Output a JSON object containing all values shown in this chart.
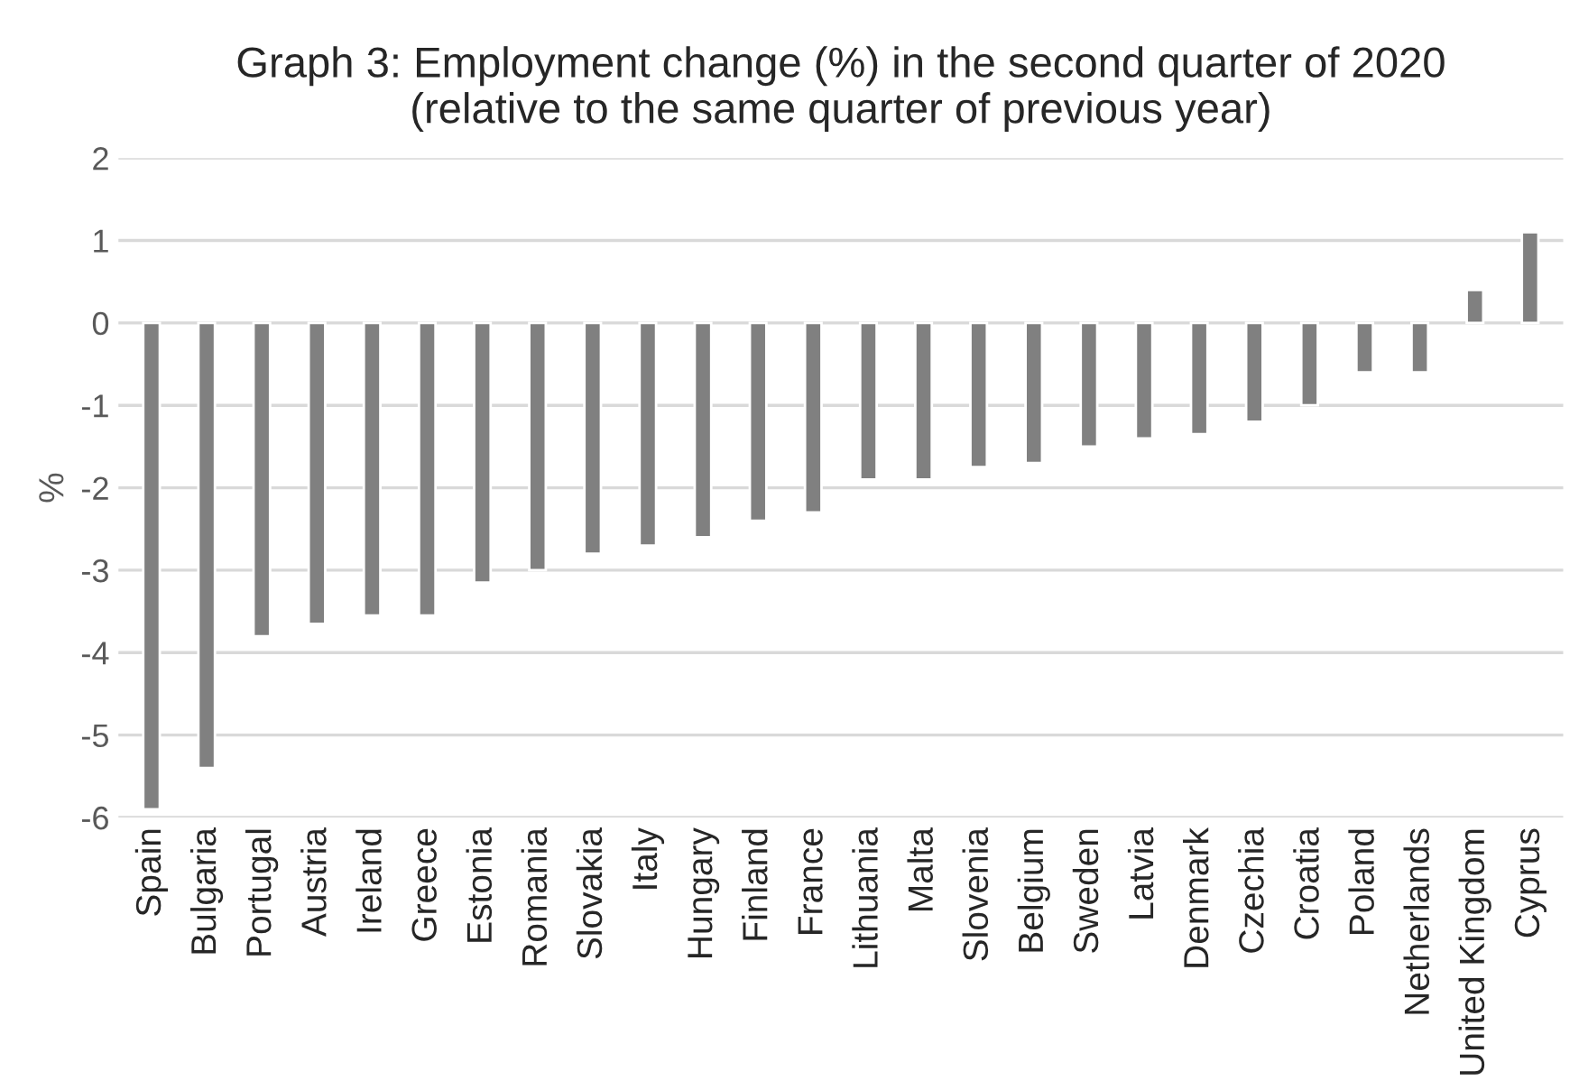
{
  "chart_data": {
    "type": "bar",
    "title": "Graph 3: Employment change (%) in the second quarter of 2020\n(relative to the same quarter of previous year)",
    "ylabel": "%",
    "categories": [
      "Spain",
      "Bulgaria",
      "Portugal",
      "Austria",
      "Ireland",
      "Greece",
      "Estonia",
      "Romania",
      "Slovakia",
      "Italy",
      "Hungary",
      "Finland",
      "France",
      "Lithuania",
      "Malta",
      "Slovenia",
      "Belgium",
      "Sweden",
      "Latvia",
      "Denmark",
      "Czechia",
      "Croatia",
      "Poland",
      "Netherlands",
      "United Kingdom",
      "Cyprus"
    ],
    "values": [
      -5.9,
      -5.4,
      -3.8,
      -3.65,
      -3.55,
      -3.55,
      -3.15,
      -3.0,
      -2.8,
      -2.7,
      -2.6,
      -2.4,
      -2.3,
      -1.9,
      -1.9,
      -1.75,
      -1.7,
      -1.5,
      -1.4,
      -1.35,
      -1.2,
      -1.0,
      -0.6,
      -0.6,
      0.4,
      1.1
    ],
    "color": "#808080",
    "ylim": [
      -6,
      2
    ],
    "yticks": [
      -6,
      -5,
      -4,
      -3,
      -2,
      -1,
      0,
      1,
      2
    ],
    "grid": "y"
  }
}
